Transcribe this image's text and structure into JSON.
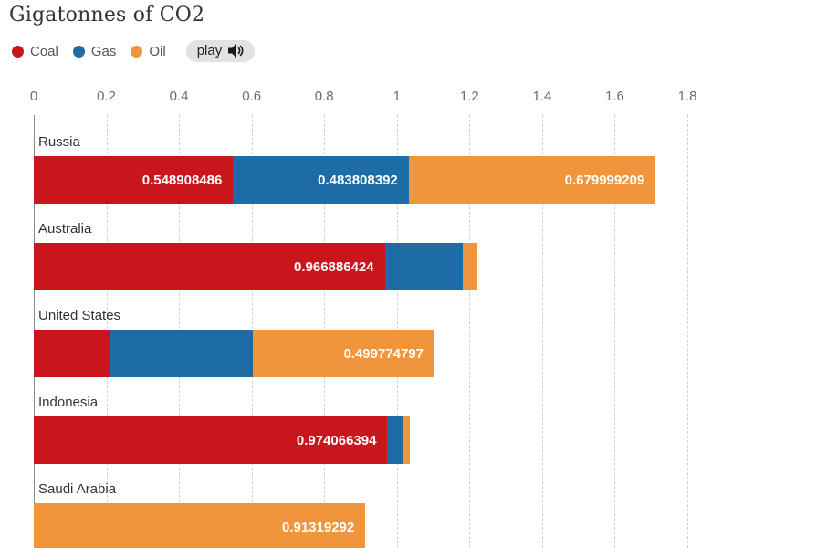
{
  "title": "Gigatonnes of CO2",
  "legend": {
    "items": [
      {
        "label": "Coal",
        "color": "#c9161c"
      },
      {
        "label": "Gas",
        "color": "#1d6ca5"
      },
      {
        "label": "Oil",
        "color": "#f0953c"
      }
    ],
    "play_label": "play",
    "play_icon": "speaker-icon"
  },
  "chart_data": {
    "type": "bar",
    "stacked": true,
    "orientation": "horizontal",
    "title": "Gigatonnes of CO2",
    "categories": [
      "Russia",
      "Australia",
      "United States",
      "Indonesia",
      "Saudi Arabia"
    ],
    "series": [
      {
        "name": "Coal",
        "color": "#c9161c",
        "values": [
          0.548908486,
          0.966886424,
          0.209,
          0.974066394,
          0
        ]
      },
      {
        "name": "Gas",
        "color": "#1d6ca5",
        "values": [
          0.483808392,
          0.215,
          0.395,
          0.044,
          0
        ]
      },
      {
        "name": "Oil",
        "color": "#f0953c",
        "values": [
          0.679999209,
          0.04,
          0.499774797,
          0.018,
          0.91319292
        ]
      }
    ],
    "bar_labels": [
      [
        "0.548908486",
        "0.483808392",
        "0.679999209"
      ],
      [
        "0.966886424",
        "",
        ""
      ],
      [
        "",
        "",
        "0.499774797"
      ],
      [
        "0.974066394",
        "",
        ""
      ],
      [
        "",
        "",
        "0.91319292"
      ]
    ],
    "xlabel": "",
    "ylabel": "",
    "xlim": [
      0,
      1.8
    ],
    "ticks": [
      0,
      0.2,
      0.4,
      0.6,
      0.8,
      1,
      1.2,
      1.4,
      1.6,
      1.8
    ],
    "tick_labels": [
      "0",
      "0.2",
      "0.4",
      "0.6",
      "0.8",
      "1",
      "1.2",
      "1.4",
      "1.6",
      "1.8"
    ],
    "grid": "dashed-vertical",
    "legend_position": "top-left"
  }
}
